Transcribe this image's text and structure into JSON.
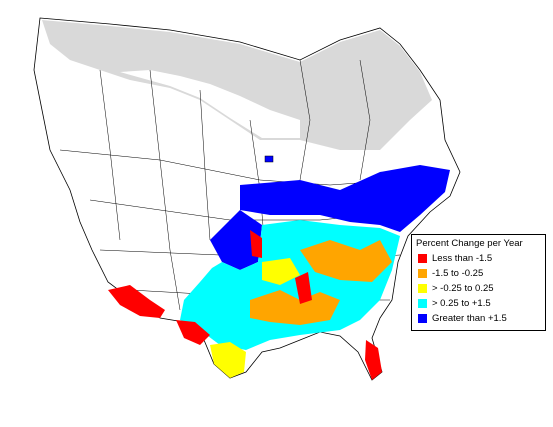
{
  "legend": {
    "title": "Percent Change per Year",
    "items": [
      {
        "label": "Less than -1.5",
        "color": "#ff0000"
      },
      {
        "label": "-1.5 to -0.25",
        "color": "#ffa500"
      },
      {
        "label": "> -0.25 to 0.25",
        "color": "#ffff00"
      },
      {
        "label": "> 0.25 to +1.5",
        "color": "#00ffff"
      },
      {
        "label": "Greater than +1.5",
        "color": "#0000ff"
      }
    ]
  },
  "colors": {
    "land": "#ffffff",
    "no_data": "#d9d9d9",
    "boundary": "#000000",
    "less_than_neg_1_5": "#ff0000",
    "neg_1_5_to_neg_0_25": "#ffa500",
    "near_zero": "#ffff00",
    "pos_0_25_to_1_5": "#00ffff",
    "greater_than_1_5": "#0000ff"
  }
}
